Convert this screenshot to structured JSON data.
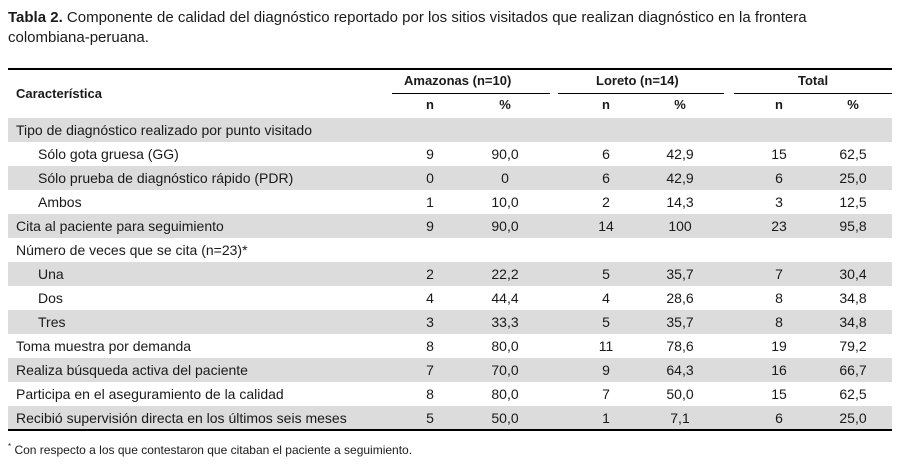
{
  "caption": {
    "label": "Tabla 2.",
    "text": "Componente de calidad del diagnóstico reportado por los sitios visitados que realizan diagnóstico en la frontera colombiana-peruana."
  },
  "header": {
    "characteristic": "Característica",
    "amazonas": "Amazonas (n=10)",
    "loreto": "Loreto (n=14)",
    "total": "Total",
    "n": "n",
    "pct": "%"
  },
  "rows": [
    {
      "label": "Tipo de diagnóstico realizado por punto visitado",
      "indent": false,
      "shade": true,
      "values": [
        "",
        "",
        "",
        "",
        "",
        ""
      ]
    },
    {
      "label": "Sólo gota gruesa (GG)",
      "indent": true,
      "shade": false,
      "values": [
        "9",
        "90,0",
        "6",
        "42,9",
        "15",
        "62,5"
      ]
    },
    {
      "label": "Sólo prueba de diagnóstico rápido (PDR)",
      "indent": true,
      "shade": true,
      "values": [
        "0",
        "0",
        "6",
        "42,9",
        "6",
        "25,0"
      ]
    },
    {
      "label": "Ambos",
      "indent": true,
      "shade": false,
      "values": [
        "1",
        "10,0",
        "2",
        "14,3",
        "3",
        "12,5"
      ]
    },
    {
      "label": "Cita al paciente para seguimiento",
      "indent": false,
      "shade": true,
      "values": [
        "9",
        "90,0",
        "14",
        "100",
        "23",
        "95,8"
      ]
    },
    {
      "label": "Número de veces que se cita (n=23)*",
      "indent": false,
      "shade": false,
      "values": [
        "",
        "",
        "",
        "",
        "",
        ""
      ]
    },
    {
      "label": "Una",
      "indent": true,
      "shade": true,
      "values": [
        "2",
        "22,2",
        "5",
        "35,7",
        "7",
        "30,4"
      ]
    },
    {
      "label": "Dos",
      "indent": true,
      "shade": false,
      "values": [
        "4",
        "44,4",
        "4",
        "28,6",
        "8",
        "34,8"
      ]
    },
    {
      "label": "Tres",
      "indent": true,
      "shade": true,
      "values": [
        "3",
        "33,3",
        "5",
        "35,7",
        "8",
        "34,8"
      ]
    },
    {
      "label": "Toma muestra por demanda",
      "indent": false,
      "shade": false,
      "values": [
        "8",
        "80,0",
        "11",
        "78,6",
        "19",
        "79,2"
      ]
    },
    {
      "label": "Realiza búsqueda activa del paciente",
      "indent": false,
      "shade": true,
      "values": [
        "7",
        "70,0",
        "9",
        "64,3",
        "16",
        "66,7"
      ]
    },
    {
      "label": "Participa en el aseguramiento de la calidad",
      "indent": false,
      "shade": false,
      "values": [
        "8",
        "80,0",
        "7",
        "50,0",
        "15",
        "62,5"
      ]
    },
    {
      "label": "Recibió supervisión directa en los últimos seis meses",
      "indent": false,
      "shade": true,
      "values": [
        "5",
        "50,0",
        "1",
        "7,1",
        "6",
        "25,0"
      ]
    }
  ],
  "footnote": {
    "mark": "*",
    "text": " Con respecto a los que contestaron que citaban el paciente a seguimiento."
  }
}
